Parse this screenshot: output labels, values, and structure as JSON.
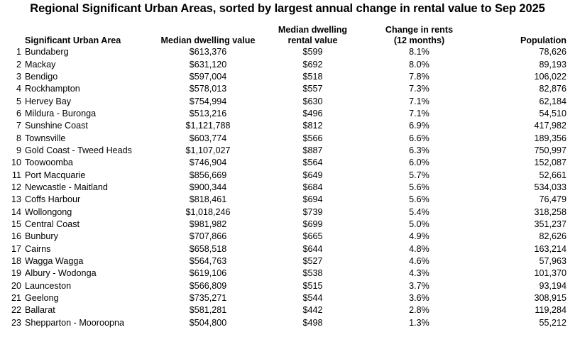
{
  "title": "Regional Significant Urban Areas, sorted by largest annual change in rental value to Sep 2025",
  "headers": {
    "area": "Significant Urban Area",
    "value": "Median dwelling value",
    "rent_line1": "Median dwelling",
    "rent_line2": "rental value",
    "change_line1": "Change in rents",
    "change_line2": "(12 months)",
    "population": "Population"
  },
  "rows": [
    {
      "rank": "1",
      "area": "Bundaberg",
      "value": "$613,376",
      "rent": "$599",
      "change": "8.1%",
      "population": "78,626"
    },
    {
      "rank": "2",
      "area": "Mackay",
      "value": "$631,120",
      "rent": "$692",
      "change": "8.0%",
      "population": "89,193"
    },
    {
      "rank": "3",
      "area": "Bendigo",
      "value": "$597,004",
      "rent": "$518",
      "change": "7.8%",
      "population": "106,022"
    },
    {
      "rank": "4",
      "area": "Rockhampton",
      "value": "$578,013",
      "rent": "$557",
      "change": "7.3%",
      "population": "82,876"
    },
    {
      "rank": "5",
      "area": "Hervey Bay",
      "value": "$754,994",
      "rent": "$630",
      "change": "7.1%",
      "population": "62,184"
    },
    {
      "rank": "6",
      "area": "Mildura - Buronga",
      "value": "$513,216",
      "rent": "$496",
      "change": "7.1%",
      "population": "54,510"
    },
    {
      "rank": "7",
      "area": "Sunshine Coast",
      "value": "$1,121,788",
      "rent": "$812",
      "change": "6.9%",
      "population": "417,982"
    },
    {
      "rank": "8",
      "area": "Townsville",
      "value": "$603,774",
      "rent": "$566",
      "change": "6.6%",
      "population": "189,356"
    },
    {
      "rank": "9",
      "area": "Gold Coast - Tweed Heads",
      "value": "$1,107,027",
      "rent": "$887",
      "change": "6.3%",
      "population": "750,997"
    },
    {
      "rank": "10",
      "area": "Toowoomba",
      "value": "$746,904",
      "rent": "$564",
      "change": "6.0%",
      "population": "152,087"
    },
    {
      "rank": "11",
      "area": "Port Macquarie",
      "value": "$856,669",
      "rent": "$649",
      "change": "5.7%",
      "population": "52,661"
    },
    {
      "rank": "12",
      "area": "Newcastle - Maitland",
      "value": "$900,344",
      "rent": "$684",
      "change": "5.6%",
      "population": "534,033"
    },
    {
      "rank": "13",
      "area": "Coffs Harbour",
      "value": "$818,461",
      "rent": "$694",
      "change": "5.6%",
      "population": "76,479"
    },
    {
      "rank": "14",
      "area": "Wollongong",
      "value": "$1,018,246",
      "rent": "$739",
      "change": "5.4%",
      "population": "318,258"
    },
    {
      "rank": "15",
      "area": "Central Coast",
      "value": "$981,982",
      "rent": "$699",
      "change": "5.0%",
      "population": "351,237"
    },
    {
      "rank": "16",
      "area": "Bunbury",
      "value": "$707,866",
      "rent": "$665",
      "change": "4.9%",
      "population": "82,626"
    },
    {
      "rank": "17",
      "area": "Cairns",
      "value": "$658,518",
      "rent": "$644",
      "change": "4.8%",
      "population": "163,214"
    },
    {
      "rank": "18",
      "area": "Wagga Wagga",
      "value": "$564,763",
      "rent": "$527",
      "change": "4.6%",
      "population": "57,963"
    },
    {
      "rank": "19",
      "area": "Albury - Wodonga",
      "value": "$619,106",
      "rent": "$538",
      "change": "4.3%",
      "population": "101,370"
    },
    {
      "rank": "20",
      "area": "Launceston",
      "value": "$566,809",
      "rent": "$515",
      "change": "3.7%",
      "population": "93,194"
    },
    {
      "rank": "21",
      "area": "Geelong",
      "value": "$735,271",
      "rent": "$544",
      "change": "3.6%",
      "population": "308,915"
    },
    {
      "rank": "22",
      "area": "Ballarat",
      "value": "$581,281",
      "rent": "$442",
      "change": "2.8%",
      "population": "119,284"
    },
    {
      "rank": "23",
      "area": "Shepparton - Mooroopna",
      "value": "$504,800",
      "rent": "$498",
      "change": "1.3%",
      "population": "55,212"
    }
  ]
}
